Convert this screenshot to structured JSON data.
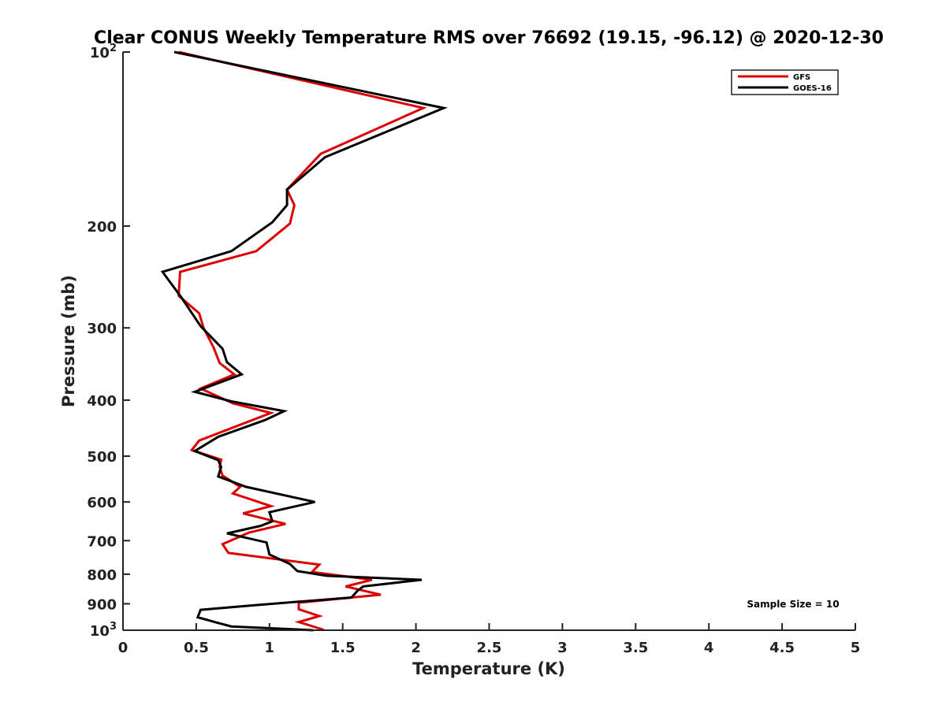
{
  "chart_data": {
    "type": "line",
    "title": "Clear CONUS Weekly Temperature RMS over 76692 (19.15, -96.12) @ 2020-12-30",
    "xlabel": "Temperature (K)",
    "ylabel": "Pressure (mb)",
    "xlim": [
      0,
      5
    ],
    "ylim": [
      100,
      1000
    ],
    "yscale": "log",
    "y_reversed": true,
    "grid": false,
    "legend_position": "top-right",
    "x_ticks": [
      0,
      0.5,
      1,
      1.5,
      2,
      2.5,
      3,
      3.5,
      4,
      4.5,
      5
    ],
    "x_tick_labels": [
      "0",
      "0.5",
      "1",
      "1.5",
      "2",
      "2.5",
      "3",
      "3.5",
      "4",
      "4.5",
      "5"
    ],
    "y_ticks": [
      100,
      200,
      300,
      400,
      500,
      600,
      700,
      800,
      900,
      1000
    ],
    "y_tick_labels": [
      {
        "base": "10",
        "exp": "2"
      },
      {
        "base": "200",
        "exp": ""
      },
      {
        "base": "300",
        "exp": ""
      },
      {
        "base": "400",
        "exp": ""
      },
      {
        "base": "500",
        "exp": ""
      },
      {
        "base": "600",
        "exp": ""
      },
      {
        "base": "700",
        "exp": ""
      },
      {
        "base": "800",
        "exp": ""
      },
      {
        "base": "900",
        "exp": ""
      },
      {
        "base": "10",
        "exp": "3"
      }
    ],
    "annotation": "Sample Size = 10",
    "series": [
      {
        "name": "GFS",
        "color": "#dd0000",
        "points": [
          [
            0.38,
            100
          ],
          [
            2.05,
            125
          ],
          [
            1.35,
            150
          ],
          [
            1.12,
            173
          ],
          [
            1.17,
            184
          ],
          [
            1.14,
            198
          ],
          [
            0.91,
            221
          ],
          [
            0.39,
            240
          ],
          [
            0.38,
            264
          ],
          [
            0.52,
            283
          ],
          [
            0.55,
            300
          ],
          [
            0.62,
            325
          ],
          [
            0.66,
            345
          ],
          [
            0.76,
            361
          ],
          [
            0.53,
            382
          ],
          [
            0.75,
            405
          ],
          [
            1.01,
            421
          ],
          [
            0.52,
            470
          ],
          [
            0.47,
            488
          ],
          [
            0.67,
            507
          ],
          [
            0.66,
            522
          ],
          [
            0.68,
            540
          ],
          [
            0.8,
            565
          ],
          [
            0.75,
            580
          ],
          [
            1.01,
            610
          ],
          [
            0.82,
            628
          ],
          [
            1.11,
            655
          ],
          [
            0.86,
            678
          ],
          [
            0.68,
            710
          ],
          [
            0.72,
            735
          ],
          [
            1.34,
            770
          ],
          [
            1.29,
            793
          ],
          [
            1.7,
            818
          ],
          [
            1.52,
            840
          ],
          [
            1.76,
            868
          ],
          [
            1.2,
            896
          ],
          [
            1.2,
            920
          ],
          [
            1.34,
            945
          ],
          [
            1.2,
            968
          ],
          [
            1.37,
            998
          ]
        ]
      },
      {
        "name": "GOES-16",
        "color": "#000000",
        "points": [
          [
            0.35,
            100
          ],
          [
            2.19,
            125
          ],
          [
            1.38,
            152
          ],
          [
            1.12,
            173
          ],
          [
            1.12,
            184
          ],
          [
            1.02,
            197
          ],
          [
            0.74,
            221
          ],
          [
            0.27,
            240
          ],
          [
            0.4,
            266
          ],
          [
            0.53,
            298
          ],
          [
            0.68,
            326
          ],
          [
            0.71,
            344
          ],
          [
            0.81,
            361
          ],
          [
            0.49,
            387
          ],
          [
            0.74,
            402
          ],
          [
            1.1,
            418
          ],
          [
            0.97,
            433
          ],
          [
            0.65,
            463
          ],
          [
            0.49,
            490
          ],
          [
            0.65,
            508
          ],
          [
            0.67,
            522
          ],
          [
            0.65,
            542
          ],
          [
            0.84,
            565
          ],
          [
            1.31,
            600
          ],
          [
            1.0,
            625
          ],
          [
            1.02,
            648
          ],
          [
            0.94,
            660
          ],
          [
            0.71,
            680
          ],
          [
            0.98,
            705
          ],
          [
            1.0,
            740
          ],
          [
            1.14,
            768
          ],
          [
            1.19,
            790
          ],
          [
            1.39,
            805
          ],
          [
            2.04,
            818
          ],
          [
            1.64,
            840
          ],
          [
            1.6,
            855
          ],
          [
            1.56,
            878
          ],
          [
            0.9,
            905
          ],
          [
            0.53,
            922
          ],
          [
            0.51,
            950
          ],
          [
            0.64,
            970
          ],
          [
            0.74,
            985
          ],
          [
            1.3,
            1000
          ]
        ]
      }
    ]
  }
}
